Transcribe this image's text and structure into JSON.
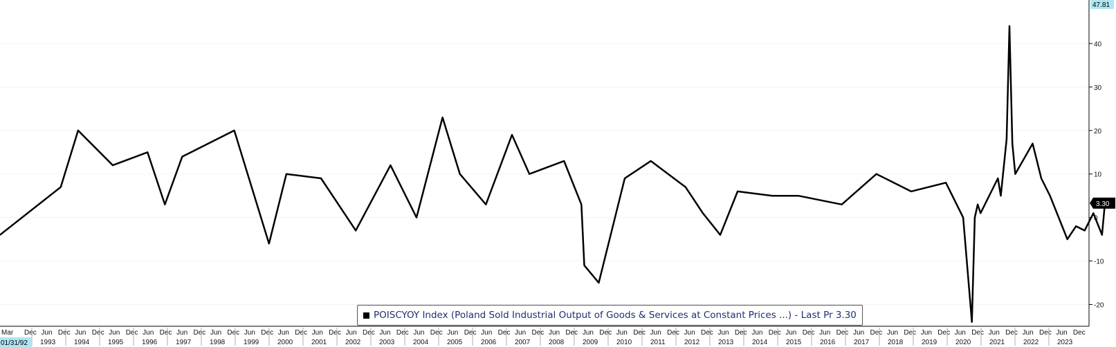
{
  "chart_data": {
    "type": "line",
    "legend_text": "POISCYOY Index (Poland Sold Industrial Output of Goods & Services at Constant Prices ...) - Last Pr 3.30",
    "legend_position": "bottom-center",
    "series_color": "#000000",
    "start_date_label": "01/31/92",
    "max_label": "47.81",
    "last_label": "3.30",
    "ylim": [
      -25,
      50
    ],
    "y_ticks": [
      -20,
      -10,
      0,
      10,
      20,
      30,
      40
    ],
    "month_tick_labels": [
      "Mar",
      "Dec",
      "Jun",
      "Dec",
      "Jun",
      "Dec",
      "Jun",
      "Dec",
      "Jun",
      "Dec",
      "Jun",
      "Dec",
      "Jun",
      "Dec",
      "Jun",
      "Dec",
      "Jun",
      "Dec",
      "Jun",
      "Dec",
      "Jun",
      "Dec",
      "Jun",
      "Dec",
      "Jun",
      "Dec",
      "Jun",
      "Dec",
      "Jun",
      "Dec",
      "Jun",
      "Dec",
      "Jun",
      "Dec",
      "Jun",
      "Dec",
      "Jun",
      "Dec",
      "Jun",
      "Dec",
      "Jun",
      "Dec",
      "Jun",
      "Dec",
      "Jun",
      "Dec",
      "Jun",
      "Dec",
      "Jun",
      "Dec",
      "Jun",
      "Dec",
      "Jun",
      "Dec",
      "Jun",
      "Dec",
      "Jun",
      "Dec",
      "Jun",
      "Dec",
      "Jun",
      "Dec",
      "Jun",
      "Dec"
    ],
    "year_labels": [
      "1993",
      "1994",
      "1995",
      "1996",
      "1997",
      "1998",
      "1999",
      "2000",
      "2001",
      "2002",
      "2003",
      "2004",
      "2005",
      "2006",
      "2007",
      "2008",
      "2009",
      "2010",
      "2011",
      "2012",
      "2013",
      "2014",
      "2015",
      "2016",
      "2017",
      "2018",
      "2019",
      "2020",
      "2021",
      "2022",
      "2023"
    ],
    "x": [
      "1992-03",
      "1993-12",
      "1994-06",
      "1995-06",
      "1996-06",
      "1996-12",
      "1997-06",
      "1998-12",
      "1999-12",
      "2000-06",
      "2001-06",
      "2002-06",
      "2003-06",
      "2004-03",
      "2004-12",
      "2005-06",
      "2006-03",
      "2006-12",
      "2007-06",
      "2008-06",
      "2008-12",
      "2009-01",
      "2009-06",
      "2010-03",
      "2010-12",
      "2011-12",
      "2012-06",
      "2012-12",
      "2013-06",
      "2014-06",
      "2015-03",
      "2016-06",
      "2017-06",
      "2018-06",
      "2019-06",
      "2019-12",
      "2020-03",
      "2020-04",
      "2020-05",
      "2020-06",
      "2020-12",
      "2021-01",
      "2021-03",
      "2021-04",
      "2021-05",
      "2021-06",
      "2021-12",
      "2022-03",
      "2022-06",
      "2022-12",
      "2023-03",
      "2023-06",
      "2023-09",
      "2023-12",
      "2024-01"
    ],
    "values": [
      -4,
      7,
      20,
      12,
      15,
      3,
      14,
      20,
      -6,
      10,
      9,
      -3,
      12,
      0,
      23,
      10,
      3,
      19,
      10,
      13,
      3,
      -11,
      -15,
      9,
      13,
      7,
      1,
      -4,
      6,
      5,
      5,
      3,
      10,
      6,
      8,
      0,
      -24,
      0,
      3,
      1,
      9,
      5,
      18,
      44,
      17,
      10,
      17,
      9,
      5,
      -5,
      -2,
      -3,
      1,
      -4,
      3.3
    ]
  }
}
